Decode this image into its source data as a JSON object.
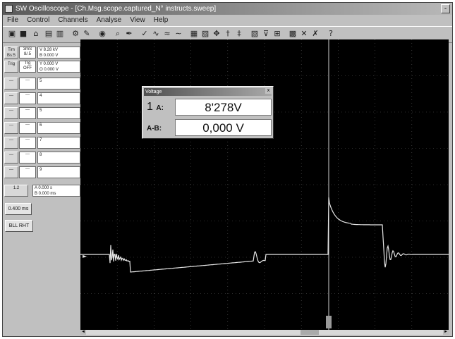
{
  "window": {
    "title": "SW Oscilloscope - [Ch.Msg.scope.captured_N° instructs.sweep]",
    "controls": "-"
  },
  "menu": [
    "File",
    "Control",
    "Channels",
    "Analyse",
    "View",
    "Help"
  ],
  "left_panel": {
    "row0": {
      "b1": "Tim Bs:5",
      "b2": "3mS 8/.5",
      "b3": "V 8.28 kV"
    },
    "row0b": {
      "b3": "B 0.000 V"
    },
    "row1": {
      "b1": "Trig",
      "b2": "Trg OFF",
      "b3": "Y 0.000 V"
    },
    "row1b": {
      "b3": "O 0.000 V"
    },
    "channel_rows": [
      {
        "b1": "---",
        "b2": "---",
        "b3": "5"
      },
      {
        "b1": "---",
        "b2": "---",
        "b3": "4"
      },
      {
        "b1": "---",
        "b2": "---",
        "b3": "5"
      },
      {
        "b1": "---",
        "b2": "---",
        "b3": "6"
      },
      {
        "b1": "---",
        "b2": "---",
        "b3": "7"
      },
      {
        "b1": "---",
        "b2": "---",
        "b3": "8"
      },
      {
        "b1": "---",
        "b2": "---",
        "b3": "9"
      }
    ],
    "time_row": {
      "b1": "1.2",
      "b3a": "A 0.000 s",
      "b3b": "B 0.000 ms"
    },
    "btn_time": "0.400 ms",
    "btn_run": "BLL RHT"
  },
  "measurement": {
    "title": "Voltage",
    "close": "x",
    "row_a_num": "1",
    "row_a_label": "A:",
    "row_a_value": "8'278V",
    "row_ab_label": "A-B:",
    "row_ab_value": "0,000 V"
  },
  "colors": {
    "screen": "#000000",
    "trace": "#e6e6e6",
    "cursor": "#d0d0d0",
    "grid": "#5a5a5a"
  },
  "icons": [
    "app-icon",
    "new-icon",
    "save-icon",
    "print-icon",
    "copy-icon",
    "zoom-icon",
    "settings-icon",
    "probe-icon",
    "cursor-icon",
    "measure-icon",
    "chart-icon",
    "arrow-icon",
    "help-icon"
  ]
}
